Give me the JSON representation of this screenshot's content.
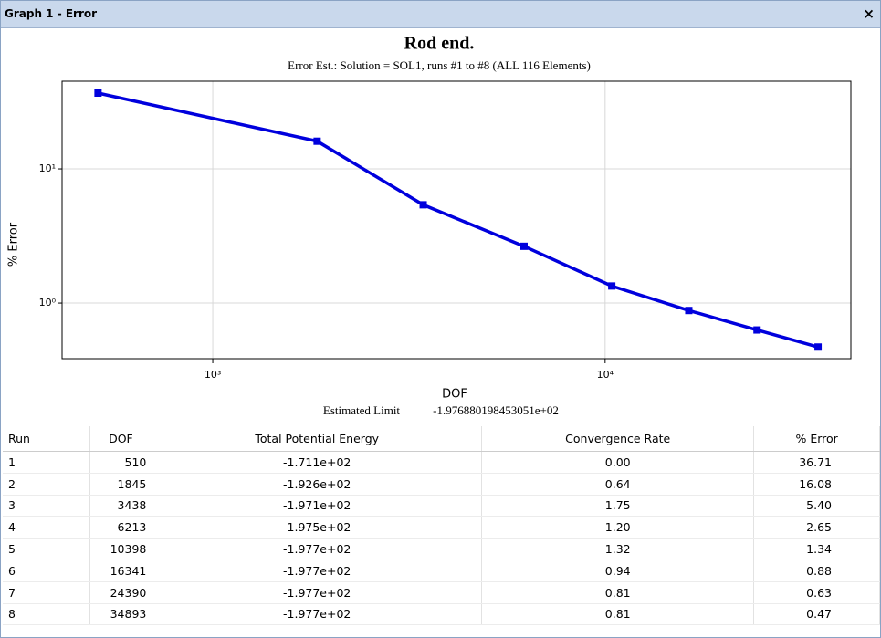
{
  "window": {
    "title": "Graph 1 - Error",
    "close": "×"
  },
  "chart_data": {
    "type": "line",
    "title": "Rod end.",
    "subtitle": "Error Est.: Solution = SOL1, runs #1 to #8 (ALL 116 Elements)",
    "x_label": "DOF",
    "y_label": "% Error",
    "x": [
      510,
      1845,
      3438,
      6213,
      10398,
      16341,
      24390,
      34893
    ],
    "series": [
      {
        "color": "#0000dd",
        "values": [
          36.71,
          16.08,
          5.4,
          2.65,
          1.34,
          0.88,
          0.63,
          0.47
        ]
      }
    ],
    "xlim": [
      413,
      42300
    ],
    "ylim": [
      0.385,
      45
    ],
    "xticks": [
      {
        "value": 1000,
        "label": "10³"
      },
      {
        "value": 10000,
        "label": "10⁴"
      }
    ],
    "yticks": [
      {
        "value": 1,
        "label": "10⁰"
      },
      {
        "value": 10,
        "label": "10¹"
      }
    ],
    "xscale": "log",
    "yscale": "log",
    "grid": true,
    "estimated_limit": {
      "label": "Estimated Limit",
      "value": "-1.976880198453051e+02"
    }
  },
  "table": {
    "columns": [
      "Run",
      "DOF",
      "Total Potential Energy",
      "Convergence Rate",
      "% Error"
    ],
    "rows": [
      [
        "1",
        "510",
        "-1.711e+02",
        "0.00",
        "36.71"
      ],
      [
        "2",
        "1845",
        "-1.926e+02",
        "0.64",
        "16.08"
      ],
      [
        "3",
        "3438",
        "-1.971e+02",
        "1.75",
        "5.40"
      ],
      [
        "4",
        "6213",
        "-1.975e+02",
        "1.20",
        "2.65"
      ],
      [
        "5",
        "10398",
        "-1.977e+02",
        "1.32",
        "1.34"
      ],
      [
        "6",
        "16341",
        "-1.977e+02",
        "0.94",
        "0.88"
      ],
      [
        "7",
        "24390",
        "-1.977e+02",
        "0.81",
        "0.63"
      ],
      [
        "8",
        "34893",
        "-1.977e+02",
        "0.81",
        "0.47"
      ]
    ]
  }
}
